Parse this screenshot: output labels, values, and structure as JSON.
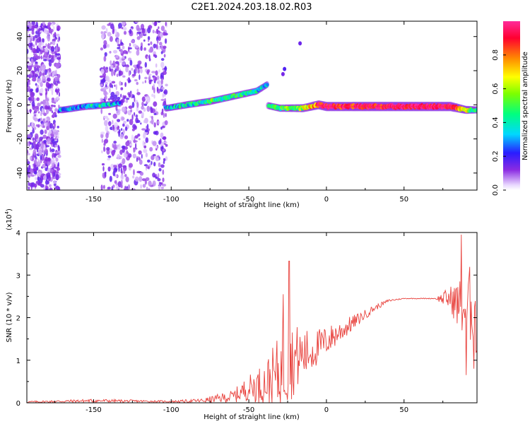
{
  "title": "C2E1.2024.203.18.02.R03",
  "chart_data": [
    {
      "type": "heatmap",
      "xlabel": "Height of straight line (km)",
      "ylabel": "Frequency (Hz)",
      "xlim": [
        -193,
        97
      ],
      "ylim": [
        -50,
        49
      ],
      "xticks": [
        -150,
        -100,
        -50,
        0,
        50
      ],
      "yticks": [
        -40,
        -20,
        0,
        20,
        40
      ],
      "grid": false,
      "scatter_bands": [
        {
          "x": [
            -193,
            -172
          ],
          "y": [
            -50,
            49
          ],
          "density": "high"
        },
        {
          "x": [
            -145,
            -103
          ],
          "y": [
            -50,
            49
          ],
          "density": "high"
        }
      ],
      "ridge": [
        {
          "x": -170,
          "y": -3,
          "amp": 0.3
        },
        {
          "x": -155,
          "y": -1,
          "amp": 0.35
        },
        {
          "x": -140,
          "y": 0,
          "amp": 0.4
        },
        {
          "x": -135,
          "y": 1,
          "amp": 0.25
        },
        {
          "x": -103,
          "y": -2,
          "amp": 0.3
        },
        {
          "x": -90,
          "y": 0,
          "amp": 0.4
        },
        {
          "x": -75,
          "y": 2,
          "amp": 0.45
        },
        {
          "x": -60,
          "y": 5,
          "amp": 0.45
        },
        {
          "x": -45,
          "y": 8,
          "amp": 0.4
        },
        {
          "x": -38,
          "y": 12,
          "amp": 0.3
        },
        {
          "x": -40,
          "y": 0,
          "amp": 0.35
        },
        {
          "x": -30,
          "y": -2,
          "amp": 0.45
        },
        {
          "x": -15,
          "y": -2,
          "amp": 0.6
        },
        {
          "x": -5,
          "y": 0,
          "amp": 0.85
        },
        {
          "x": 0,
          "y": -1,
          "amp": 0.9
        },
        {
          "x": 20,
          "y": -1,
          "amp": 0.92
        },
        {
          "x": 50,
          "y": -1,
          "amp": 0.95
        },
        {
          "x": 80,
          "y": -1,
          "amp": 0.95
        },
        {
          "x": 90,
          "y": -3,
          "amp": 0.6
        },
        {
          "x": 97,
          "y": -3,
          "amp": 0.4
        }
      ],
      "colorbar": {
        "label": "Normalized spectral amplitude",
        "range": [
          0,
          1
        ],
        "ticks": [
          "0.0",
          "0.2",
          "0.4",
          "0.6",
          "0.8"
        ],
        "tick_values": [
          0,
          0.2,
          0.4,
          0.6,
          0.8
        ]
      }
    },
    {
      "type": "line",
      "xlabel": "Height of straight line (km)",
      "ylabel": "SNR (10 * v/v)",
      "yscale_label": "(x10",
      "yscale_exp": "4",
      "yscale_close": ")",
      "xlim": [
        -193,
        97
      ],
      "ylim": [
        0,
        4
      ],
      "xticks": [
        -150,
        -100,
        -50,
        0,
        50
      ],
      "yticks": [
        0,
        1,
        2,
        3,
        4
      ],
      "grid": false,
      "series": [
        {
          "color": "#e8413c",
          "envelope_x": [
            -193,
            -150,
            -100,
            -80,
            -60,
            -50,
            -40,
            -30,
            -25,
            -20,
            -10,
            0,
            10,
            20,
            30,
            40,
            50,
            60,
            70,
            80,
            85,
            90,
            95,
            97
          ],
          "envelope_y": [
            0.02,
            0.05,
            0.03,
            0.05,
            0.15,
            0.35,
            0.45,
            0.7,
            0.9,
            1.05,
            1.2,
            1.45,
            1.7,
            1.95,
            2.2,
            2.4,
            2.45,
            2.45,
            2.45,
            2.45,
            2.3,
            2.2,
            2.4,
            1.5
          ],
          "noise_amp": [
            0.02,
            0.04,
            0.02,
            0.05,
            0.15,
            0.3,
            0.5,
            0.9,
            1.0,
            0.8,
            0.5,
            0.35,
            0.25,
            0.15,
            0.08,
            0.03,
            0.01,
            0.01,
            0.01,
            0.3,
            0.6,
            0.9,
            1.0,
            0.8
          ],
          "peaks": [
            {
              "x": -24,
              "y": 3.33
            },
            {
              "x": -28,
              "y": 2.55
            },
            {
              "x": 87,
              "y": 3.95
            },
            {
              "x": 90,
              "y": 0.65
            },
            {
              "x": 95,
              "y": 0.8
            }
          ]
        }
      ]
    }
  ]
}
